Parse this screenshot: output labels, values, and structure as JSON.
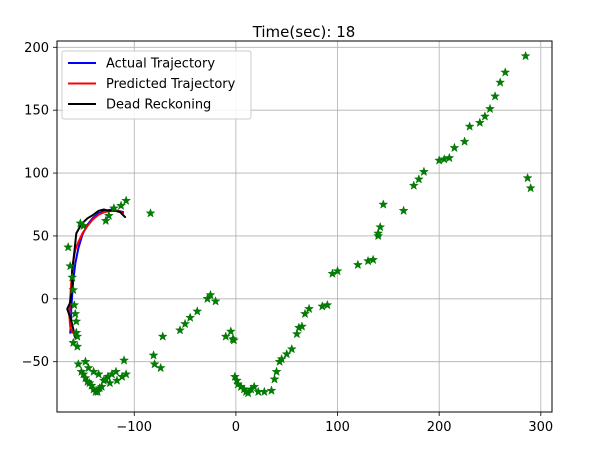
{
  "title": "Time(sec): 18",
  "chart_data": {
    "type": "scatter",
    "title": "Time(sec): 18",
    "xlabel": "",
    "ylabel": "",
    "xlim": [
      -176,
      311
    ],
    "ylim": [
      -90,
      205
    ],
    "xticks": [
      -100,
      0,
      100,
      200,
      300
    ],
    "yticks": [
      -50,
      0,
      50,
      100,
      150,
      200
    ],
    "xtick_labels": [
      "−100",
      "0",
      "100",
      "200",
      "300"
    ],
    "ytick_labels": [
      "−50",
      "0",
      "50",
      "100",
      "150",
      "200"
    ],
    "grid": true,
    "legend": {
      "placement": "top-left",
      "entries": [
        "Actual Trajectory",
        "Predicted Trajectory",
        "Dead Reckoning"
      ]
    },
    "series": [
      {
        "name": "Actual Trajectory",
        "kind": "line",
        "color": "#0000ff",
        "x": [
          -163,
          -162,
          -162,
          -161,
          -160,
          -158,
          -155,
          -151,
          -146,
          -141,
          -135,
          -129,
          -122,
          -116,
          -111
        ],
        "y": [
          -27,
          -18,
          -8,
          3,
          15,
          28,
          40,
          51,
          59,
          64,
          68,
          70,
          71,
          70,
          69
        ]
      },
      {
        "name": "Predicted Trajectory",
        "kind": "line",
        "color": "#ff0000",
        "x": [
          -161,
          -163,
          -164,
          -163,
          -162,
          -161,
          -160,
          -158,
          -155,
          -151,
          -146,
          -141,
          -135,
          -129,
          -122,
          -116,
          -111
        ],
        "y": [
          -27,
          -22,
          -12,
          0,
          12,
          24,
          30,
          39,
          45,
          52,
          58,
          63,
          67,
          69,
          70,
          70,
          68
        ]
      },
      {
        "name": "Dead Reckoning",
        "kind": "line",
        "color": "#000000",
        "x": [
          -158,
          -162,
          -166,
          -163,
          -161,
          -161,
          -159,
          -157,
          -153,
          -150,
          -146,
          -140,
          -135,
          -130,
          -125,
          -119,
          -114,
          -109
        ],
        "y": [
          -31,
          -17,
          -8,
          -3,
          10,
          22,
          37,
          52,
          58,
          61,
          64,
          67,
          70,
          71,
          70,
          70,
          69,
          65
        ]
      },
      {
        "name": "",
        "kind": "markers",
        "color": "#008000",
        "x": [
          -165,
          -163,
          -161,
          -160,
          -159,
          -158,
          -157,
          -157,
          -156,
          -160,
          -156,
          -155,
          -152,
          -150,
          -148,
          -146,
          -144,
          -142,
          -140,
          -138,
          -136,
          -134,
          -132,
          -130,
          -126,
          -122,
          -118,
          -110,
          -108,
          -112,
          -117,
          -124,
          -128,
          -135,
          -140,
          -145,
          -148,
          -150,
          -153,
          -128,
          -125,
          -120,
          -113,
          -108,
          -84,
          -81,
          -80,
          -74,
          -72,
          -55,
          -50,
          -45,
          -38,
          -28,
          -25,
          -20,
          -10,
          -5,
          -3,
          -2,
          -1,
          1,
          2,
          5,
          8,
          10,
          12,
          15,
          18,
          22,
          28,
          35,
          38,
          40,
          43,
          45,
          50,
          55,
          60,
          62,
          65,
          68,
          72,
          85,
          90,
          95,
          100,
          120,
          130,
          135,
          140,
          140,
          142,
          145,
          165,
          175,
          180,
          185,
          200,
          205,
          210,
          215,
          225,
          230,
          240,
          245,
          250,
          255,
          260,
          265,
          285,
          287,
          290
        ],
        "y": [
          41,
          26,
          17,
          7,
          -5,
          -12,
          -18,
          -27,
          -30,
          -35,
          -38,
          -52,
          -58,
          -60,
          -63,
          -66,
          -67,
          -69,
          -72,
          -74,
          -74,
          -71,
          -70,
          -65,
          -62,
          -60,
          -58,
          -49,
          -60,
          -62,
          -65,
          -67,
          -64,
          -60,
          -58,
          -55,
          -50,
          58,
          60,
          62,
          66,
          72,
          74,
          78,
          68,
          -45,
          -52,
          -55,
          -30,
          -25,
          -20,
          -15,
          -10,
          0,
          3,
          -2,
          -30,
          -26,
          -32,
          -33,
          -62,
          -65,
          -68,
          -70,
          -72,
          -74,
          -75,
          -72,
          -70,
          -74,
          -74,
          -73,
          -64,
          -58,
          -50,
          -48,
          -44,
          -40,
          -28,
          -23,
          -22,
          -12,
          -8,
          -6,
          -5,
          20,
          22,
          27,
          30,
          31,
          50,
          52,
          57,
          75,
          70,
          90,
          95,
          101,
          110,
          111,
          112,
          120,
          125,
          137,
          140,
          145,
          151,
          161,
          172,
          180,
          193,
          96,
          88
        ]
      }
    ]
  }
}
